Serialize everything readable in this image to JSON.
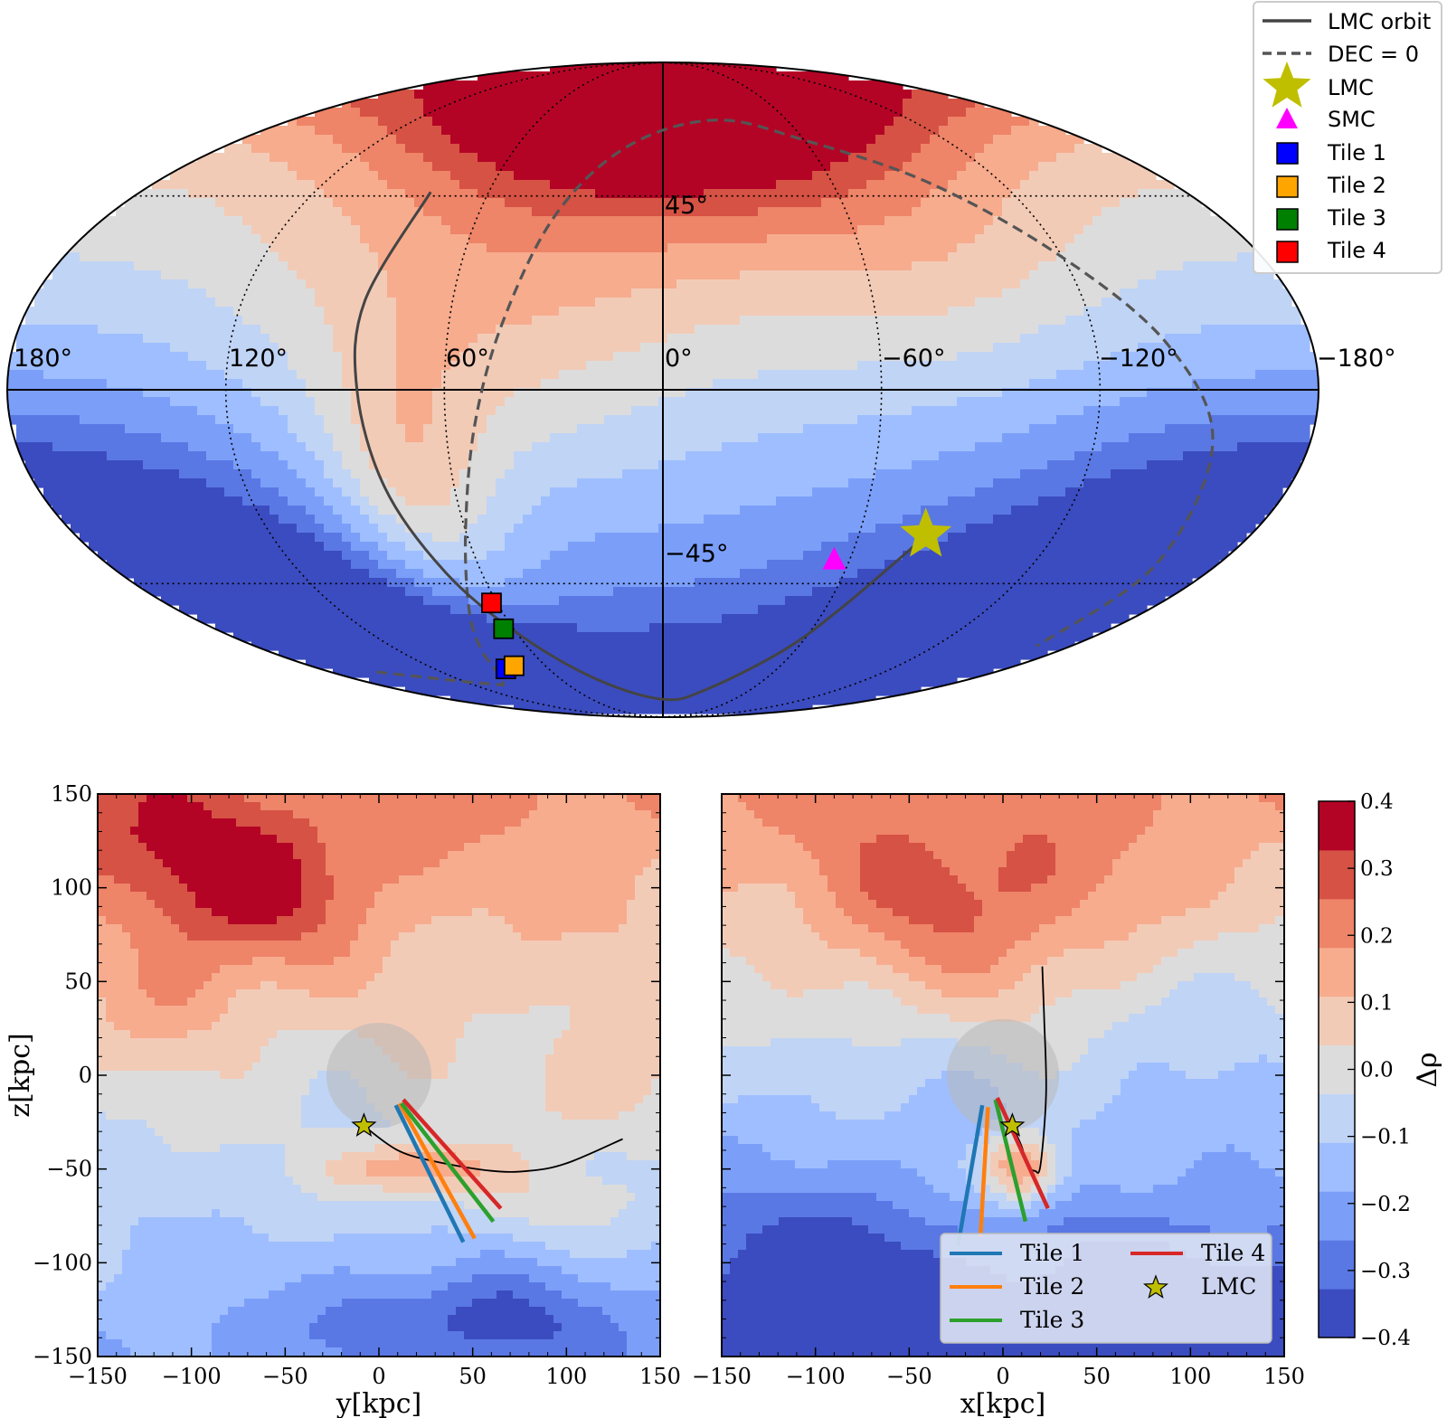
{
  "figure": {
    "colors": {
      "orbit": "#444444",
      "lmc_marker": "#bfbf00",
      "smc_marker": "#ff00ff",
      "tile1": "#0000ff",
      "tile2": "#ffa500",
      "tile3": "#008000",
      "tile4": "#ff0000",
      "tile1_line": "#1f77b4",
      "tile2_line": "#ff7f0e",
      "tile3_line": "#2ca02c",
      "tile4_line": "#d62728"
    },
    "colormap": [
      "#3b4cc0",
      "#5a78e4",
      "#7b9ff9",
      "#9ebeff",
      "#c0d4f5",
      "#dddcdc",
      "#f2cbb7",
      "#f7ac8e",
      "#ee8468",
      "#d65244",
      "#b40426"
    ]
  },
  "chart_data": [
    {
      "type": "heatmap",
      "subtype": "mollweide-sky-map",
      "title": "",
      "lon_tick_labels": [
        "180°",
        "120°",
        "60°",
        "0°",
        "−60°",
        "−120°",
        "−180°"
      ],
      "lat_tick_labels": [
        "45°",
        "−45°"
      ],
      "lon_ticks_deg": [
        180,
        120,
        60,
        0,
        -60,
        -120,
        -180
      ],
      "lat_ticks_deg": [
        45,
        -45
      ],
      "grid": true,
      "legend": {
        "placement": "top-right",
        "entries": [
          {
            "label": "LMC orbit",
            "style": "solid-line",
            "color_key": "orbit"
          },
          {
            "label": "DEC = 0",
            "style": "dashed-line",
            "color_key": "orbit"
          },
          {
            "label": "LMC",
            "style": "star",
            "color_key": "lmc_marker"
          },
          {
            "label": "SMC",
            "style": "triangle",
            "color_key": "smc_marker"
          },
          {
            "label": "Tile 1",
            "style": "square",
            "color_key": "tile1"
          },
          {
            "label": "Tile 2",
            "style": "square",
            "color_key": "tile2"
          },
          {
            "label": "Tile 3",
            "style": "square",
            "color_key": "tile3"
          },
          {
            "label": "Tile 4",
            "style": "square",
            "color_key": "tile4"
          }
        ]
      },
      "field_blobs": [
        {
          "lon": 0,
          "lat": 70,
          "amp": 0.36,
          "slon": 45,
          "slat": 20
        },
        {
          "lon": 72,
          "lat": -25,
          "amp": 0.22,
          "slon": 16,
          "slat": 22
        },
        {
          "lon": 55,
          "lat": 10,
          "amp": 0.12,
          "slon": 40,
          "slat": 30
        },
        {
          "lon": -80,
          "lat": 30,
          "amp": 0.08,
          "slon": 30,
          "slat": 20
        },
        {
          "lon": 160,
          "lat": -55,
          "amp": -0.2,
          "slon": 40,
          "slat": 25
        },
        {
          "lon": -160,
          "lat": -50,
          "amp": -0.22,
          "slon": 40,
          "slat": 25
        },
        {
          "lon": -20,
          "lat": -80,
          "amp": -0.06,
          "slon": 40,
          "slat": 15
        }
      ],
      "field_gradient": {
        "base": -0.12,
        "lat_coef": 0.26,
        "lon_coef": 0.05
      },
      "lmc_orbit": [
        [
          80,
          46
        ],
        [
          85,
          20
        ],
        [
          84,
          0
        ],
        [
          80,
          -22
        ],
        [
          72,
          -42
        ],
        [
          60,
          -58
        ],
        [
          40,
          -72
        ],
        [
          0,
          -80
        ],
        [
          -30,
          -76
        ],
        [
          -55,
          -63
        ],
        [
          -66,
          -51
        ],
        [
          -80,
          -34
        ]
      ],
      "dec0_line": [
        [
          155,
          -70
        ],
        [
          110,
          -74
        ],
        [
          96,
          -73
        ],
        [
          82,
          -63
        ],
        [
          72,
          -52
        ],
        [
          60,
          -32
        ],
        [
          52,
          -8
        ],
        [
          45,
          15
        ],
        [
          35,
          40
        ],
        [
          15,
          58
        ],
        [
          -25,
          66
        ],
        [
          -60,
          60
        ],
        [
          -95,
          48
        ],
        [
          -120,
          30
        ],
        [
          -140,
          10
        ],
        [
          -153,
          -12
        ],
        [
          -160,
          -40
        ],
        [
          -165,
          -62
        ]
      ],
      "lmc": {
        "lon": -80.5,
        "lat": -33
      },
      "smc": {
        "lon": -55,
        "lat": -39
      },
      "tiles": [
        {
          "name": "Tile 1",
          "lon": 82.5,
          "lat": -69
        },
        {
          "name": "Tile 2",
          "lon": 76,
          "lat": -68
        },
        {
          "name": "Tile 3",
          "lon": 64,
          "lat": -57
        },
        {
          "name": "Tile 4",
          "lon": 62,
          "lat": -50
        }
      ]
    },
    {
      "type": "heatmap",
      "subtype": "filled-contour",
      "xlabel": "y[kpc]",
      "ylabel": "z[kpc]",
      "xlim": [
        -150,
        150
      ],
      "ylim": [
        -150,
        150
      ],
      "xticks": [
        -150,
        -100,
        -50,
        0,
        50,
        100,
        150
      ],
      "yticks": [
        -150,
        -100,
        -50,
        0,
        50,
        100,
        150
      ],
      "tick_labels_x": [
        "−150",
        "−100",
        "−50",
        "0",
        "50",
        "100",
        "150"
      ],
      "tick_labels_y": [
        "−150",
        "−100",
        "−50",
        "0",
        "50",
        "100",
        "150"
      ],
      "inner_circle": {
        "x": 0,
        "y": 0,
        "r": 28
      },
      "lmc": {
        "x": -8,
        "y": -27
      },
      "orbit": [
        [
          -8,
          -27
        ],
        [
          10,
          -40
        ],
        [
          30,
          -46
        ],
        [
          60,
          -51
        ],
        [
          80,
          -51
        ],
        [
          100,
          -47
        ],
        [
          130,
          -34
        ]
      ],
      "tile_lines": [
        {
          "name": "Tile 1",
          "color_key": "tile1_line",
          "from": [
            9,
            -16
          ],
          "to": [
            45,
            -89
          ]
        },
        {
          "name": "Tile 2",
          "color_key": "tile2_line",
          "from": [
            11,
            -15
          ],
          "to": [
            51,
            -87
          ]
        },
        {
          "name": "Tile 3",
          "color_key": "tile3_line",
          "from": [
            12,
            -15
          ],
          "to": [
            61,
            -78
          ]
        },
        {
          "name": "Tile 4",
          "color_key": "tile4_line",
          "from": [
            13,
            -13
          ],
          "to": [
            65,
            -71
          ]
        }
      ],
      "field_blobs": [
        {
          "x": -70,
          "y": 100,
          "amp": 0.24,
          "sx": 45,
          "sy": 30
        },
        {
          "x": -130,
          "y": 130,
          "amp": 0.1,
          "sx": 30,
          "sy": 25
        },
        {
          "x": -110,
          "y": 40,
          "amp": 0.1,
          "sx": 30,
          "sy": 25
        },
        {
          "x": 20,
          "y": -50,
          "amp": 0.26,
          "sx": 30,
          "sy": 10
        },
        {
          "x": 120,
          "y": -10,
          "amp": 0.1,
          "sx": 30,
          "sy": 20
        },
        {
          "x": 90,
          "y": -70,
          "amp": 0.08,
          "sx": 40,
          "sy": 15
        },
        {
          "x": 50,
          "y": -130,
          "amp": -0.18,
          "sx": 60,
          "sy": 20
        }
      ],
      "field_gradient": {
        "base": 0.0,
        "y_coef": 0.0013
      }
    },
    {
      "type": "heatmap",
      "subtype": "filled-contour",
      "xlabel": "x[kpc]",
      "ylabel": "",
      "xlim": [
        -150,
        150
      ],
      "ylim": [
        -150,
        150
      ],
      "xticks": [
        -150,
        -100,
        -50,
        0,
        50,
        100,
        150
      ],
      "tick_labels_x": [
        "−150",
        "−100",
        "−50",
        "0",
        "50",
        "100",
        "150"
      ],
      "inner_circle": {
        "x": 0,
        "y": 0,
        "r": 30
      },
      "lmc": {
        "x": 5,
        "y": -27
      },
      "orbit": [
        [
          5,
          -27
        ],
        [
          10,
          -38
        ],
        [
          13,
          -48
        ],
        [
          17,
          -51
        ],
        [
          20,
          -48
        ],
        [
          23,
          -10
        ],
        [
          22,
          30
        ],
        [
          21,
          58
        ]
      ],
      "tile_lines": [
        {
          "name": "Tile 1",
          "color_key": "tile1_line",
          "from": [
            -11,
            -16
          ],
          "to": [
            -24,
            -91
          ]
        },
        {
          "name": "Tile 2",
          "color_key": "tile2_line",
          "from": [
            -8,
            -17
          ],
          "to": [
            -12,
            -86
          ]
        },
        {
          "name": "Tile 3",
          "color_key": "tile3_line",
          "from": [
            -4,
            -13
          ],
          "to": [
            12,
            -78
          ]
        },
        {
          "name": "Tile 4",
          "color_key": "tile4_line",
          "from": [
            -3,
            -12
          ],
          "to": [
            24,
            -71
          ]
        }
      ],
      "legend": {
        "placement": "lower-right",
        "entries": [
          {
            "label": "Tile 1",
            "style": "line",
            "color_key": "tile1_line"
          },
          {
            "label": "Tile 4",
            "style": "line",
            "color_key": "tile4_line"
          },
          {
            "label": "Tile 2",
            "style": "line",
            "color_key": "tile2_line"
          },
          {
            "label": "LMC",
            "style": "star",
            "color_key": "lmc_marker"
          },
          {
            "label": "Tile 3",
            "style": "line",
            "color_key": "tile3_line"
          }
        ]
      },
      "field_blobs": [
        {
          "x": -20,
          "y": 90,
          "amp": 0.2,
          "sx": 60,
          "sy": 40
        },
        {
          "x": 10,
          "y": -50,
          "amp": 0.38,
          "sx": 16,
          "sy": 14
        },
        {
          "x": -100,
          "y": -110,
          "amp": -0.16,
          "sx": 45,
          "sy": 30
        },
        {
          "x": 80,
          "y": -120,
          "amp": -0.14,
          "sx": 60,
          "sy": 25
        },
        {
          "x": 120,
          "y": 40,
          "amp": -0.06,
          "sx": 30,
          "sy": 30
        }
      ],
      "field_gradient": {
        "base": -0.09,
        "y_coef": 0.0018
      }
    },
    {
      "type": "heatmap",
      "subtype": "colorbar",
      "label": "Δρ",
      "range": [
        -0.4,
        0.4
      ],
      "levels": 11,
      "ticks": [
        0.4,
        0.3,
        0.2,
        0.1,
        0.0,
        -0.1,
        -0.2,
        -0.3,
        -0.4
      ],
      "tick_labels": [
        "0.4",
        "0.3",
        "0.2",
        "0.1",
        "0.0",
        "−0.1",
        "−0.2",
        "−0.3",
        "−0.4"
      ]
    }
  ]
}
